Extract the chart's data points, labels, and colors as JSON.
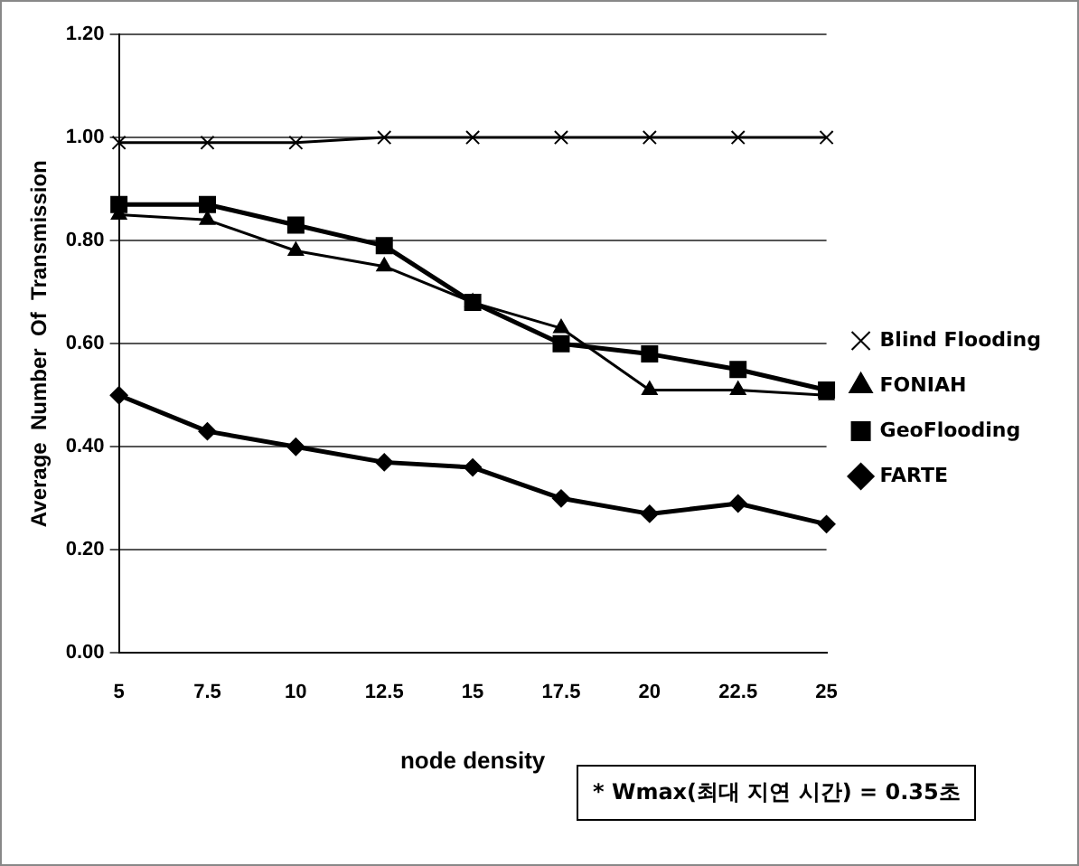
{
  "chart_data": {
    "type": "line",
    "xlabel": "node density",
    "ylabel": "Average  Number  Of  Transmission",
    "categories": [
      "5",
      "7.5",
      "10",
      "12.5",
      "15",
      "17.5",
      "20",
      "22.5",
      "25"
    ],
    "series": [
      {
        "name": "Blind Flooding",
        "color": "#000000",
        "marker": "cross",
        "values": [
          0.99,
          0.99,
          0.99,
          1.0,
          1.0,
          1.0,
          1.0,
          1.0,
          1.0
        ]
      },
      {
        "name": "FONIAH",
        "color": "#000000",
        "marker": "triangle",
        "values": [
          0.85,
          0.84,
          0.78,
          0.75,
          0.68,
          0.63,
          0.51,
          0.51,
          0.5
        ]
      },
      {
        "name": "GeoFlooding",
        "color": "#000000",
        "marker": "square",
        "values": [
          0.87,
          0.87,
          0.83,
          0.79,
          0.68,
          0.6,
          0.58,
          0.55,
          0.51
        ]
      },
      {
        "name": "FARTE",
        "color": "#000000",
        "marker": "diamond",
        "values": [
          0.5,
          0.43,
          0.4,
          0.37,
          0.36,
          0.3,
          0.27,
          0.29,
          0.25
        ]
      }
    ],
    "ylim": [
      0,
      1.2
    ],
    "yticks": [
      {
        "value": 0,
        "label": "0.00"
      },
      {
        "value": 0.2,
        "label": "0.20"
      },
      {
        "value": 0.4,
        "label": "0.40"
      },
      {
        "value": 0.6,
        "label": "0.60"
      },
      {
        "value": 0.8,
        "label": "0.80"
      },
      {
        "value": 1,
        "label": "1.00"
      },
      {
        "value": 1.2,
        "label": "1.20"
      }
    ],
    "grid": "y",
    "legend": "right",
    "line_style": "solid",
    "annotations": [
      "* Wmax(최대 지연 시간) = 0.35초"
    ]
  }
}
